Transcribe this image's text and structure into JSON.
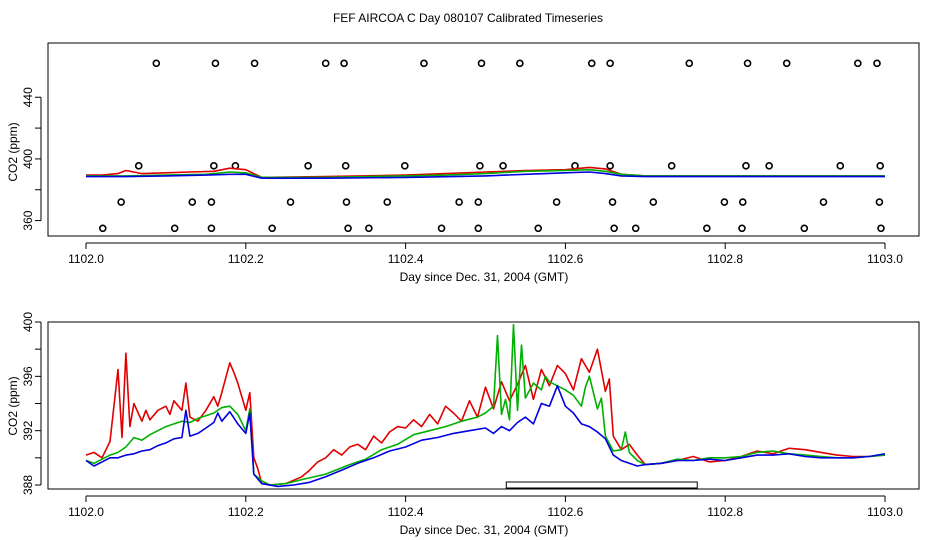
{
  "page_title": "FEF AIRCOA C  Day 080107  Calibrated Timeseries",
  "chart_data": [
    {
      "type": "scatter+line",
      "xlabel": "Day since Dec. 31, 2004 (GMT)",
      "ylabel": "CO2 (ppm)",
      "xlim": [
        1102.0,
        1103.0
      ],
      "ylim": [
        350,
        470
      ],
      "x_ticks": [
        "1102.0",
        "1102.2",
        "1102.4",
        "1102.6",
        "1102.8",
        "1103.0"
      ],
      "y_ticks": [
        "360",
        "400",
        "440"
      ],
      "markers": {
        "style": "open-circle",
        "points": [
          [
            1102.088,
            462
          ],
          [
            1102.162,
            462
          ],
          [
            1102.211,
            462
          ],
          [
            1102.3,
            462
          ],
          [
            1102.323,
            462
          ],
          [
            1102.423,
            462
          ],
          [
            1102.495,
            462
          ],
          [
            1102.543,
            462
          ],
          [
            1102.633,
            462
          ],
          [
            1102.656,
            462
          ],
          [
            1102.755,
            462
          ],
          [
            1102.828,
            462
          ],
          [
            1102.877,
            462
          ],
          [
            1102.966,
            462
          ],
          [
            1102.99,
            462
          ],
          [
            1102.066,
            395.5
          ],
          [
            1102.16,
            395.5
          ],
          [
            1102.187,
            395.5
          ],
          [
            1102.278,
            395.5
          ],
          [
            1102.325,
            395.5
          ],
          [
            1102.399,
            395.5
          ],
          [
            1102.493,
            395.5
          ],
          [
            1102.522,
            395.5
          ],
          [
            1102.612,
            395.5
          ],
          [
            1102.656,
            395.5
          ],
          [
            1102.733,
            395.5
          ],
          [
            1102.826,
            395.5
          ],
          [
            1102.855,
            395.5
          ],
          [
            1102.944,
            395.5
          ],
          [
            1102.994,
            395.5
          ],
          [
            1102.044,
            372
          ],
          [
            1102.133,
            372
          ],
          [
            1102.157,
            372
          ],
          [
            1102.256,
            372
          ],
          [
            1102.326,
            372
          ],
          [
            1102.377,
            372
          ],
          [
            1102.467,
            372
          ],
          [
            1102.491,
            372
          ],
          [
            1102.589,
            372
          ],
          [
            1102.659,
            372
          ],
          [
            1102.71,
            372
          ],
          [
            1102.799,
            372
          ],
          [
            1102.822,
            372
          ],
          [
            1102.923,
            372
          ],
          [
            1102.993,
            372
          ],
          [
            1102.021,
            355
          ],
          [
            1102.111,
            355
          ],
          [
            1102.157,
            355
          ],
          [
            1102.233,
            355
          ],
          [
            1102.328,
            355
          ],
          [
            1102.354,
            355
          ],
          [
            1102.445,
            355
          ],
          [
            1102.491,
            355
          ],
          [
            1102.566,
            355
          ],
          [
            1102.661,
            355
          ],
          [
            1102.688,
            355
          ],
          [
            1102.777,
            355
          ],
          [
            1102.821,
            355
          ],
          [
            1102.899,
            355
          ],
          [
            1102.995,
            355
          ]
        ]
      },
      "series": [
        {
          "name": "red",
          "color": "#e00000",
          "x": [
            1102.0,
            1102.02,
            1102.04,
            1102.05,
            1102.07,
            1102.1,
            1102.13,
            1102.16,
            1102.18,
            1102.2,
            1102.21,
            1102.22,
            1102.3,
            1102.4,
            1102.45,
            1102.5,
            1102.55,
            1102.6,
            1102.63,
            1102.65,
            1102.67,
            1102.7,
            1102.8,
            1102.9,
            1103.0
          ],
          "y": [
            389.5,
            389.5,
            390.5,
            392.5,
            390.5,
            391,
            391.5,
            392,
            394,
            393,
            390.5,
            388,
            388.5,
            389.5,
            390.5,
            391.5,
            392.5,
            393,
            394.5,
            393.5,
            390,
            389,
            389,
            389,
            389
          ]
        },
        {
          "name": "green",
          "color": "#00b000",
          "x": [
            1102.0,
            1102.05,
            1102.1,
            1102.15,
            1102.18,
            1102.2,
            1102.22,
            1102.3,
            1102.4,
            1102.45,
            1102.5,
            1102.55,
            1102.6,
            1102.63,
            1102.65,
            1102.67,
            1102.7,
            1102.8,
            1102.9,
            1103.0
          ],
          "y": [
            389,
            389,
            389.5,
            390,
            391.5,
            391,
            388,
            388,
            389,
            389.5,
            390.5,
            392,
            392.5,
            393,
            392,
            390,
            389,
            389,
            389,
            389
          ]
        },
        {
          "name": "blue",
          "color": "#0000e0",
          "x": [
            1102.0,
            1102.05,
            1102.1,
            1102.15,
            1102.18,
            1102.2,
            1102.22,
            1102.3,
            1102.4,
            1102.5,
            1102.55,
            1102.6,
            1102.63,
            1102.65,
            1102.67,
            1102.7,
            1102.8,
            1102.9,
            1103.0
          ],
          "y": [
            388.5,
            388.5,
            389,
            389.5,
            390,
            390,
            387.5,
            387.5,
            388,
            389,
            390,
            391,
            391.5,
            390.5,
            389,
            388.5,
            388.5,
            388.5,
            388.5
          ]
        }
      ]
    },
    {
      "type": "line",
      "xlabel": "Day since Dec. 31, 2004 (GMT)",
      "ylabel": "CO2 (ppm)",
      "xlim": [
        1102.0,
        1103.0
      ],
      "ylim": [
        388,
        400
      ],
      "x_ticks": [
        "1102.0",
        "1102.2",
        "1102.4",
        "1102.6",
        "1102.8",
        "1103.0"
      ],
      "y_ticks": [
        "388",
        "392",
        "396",
        "400"
      ],
      "range_bar": {
        "x": [
          1102.526,
          1102.765
        ]
      },
      "series": [
        {
          "name": "red",
          "color": "#e00000",
          "x": [
            1102.0,
            1102.01,
            1102.02,
            1102.03,
            1102.04,
            1102.045,
            1102.05,
            1102.055,
            1102.06,
            1102.07,
            1102.075,
            1102.08,
            1102.09,
            1102.1,
            1102.105,
            1102.11,
            1102.12,
            1102.125,
            1102.13,
            1102.14,
            1102.15,
            1102.16,
            1102.165,
            1102.17,
            1102.18,
            1102.185,
            1102.19,
            1102.2,
            1102.205,
            1102.21,
            1102.215,
            1102.22,
            1102.23,
            1102.25,
            1102.27,
            1102.28,
            1102.29,
            1102.3,
            1102.31,
            1102.32,
            1102.33,
            1102.34,
            1102.35,
            1102.36,
            1102.37,
            1102.38,
            1102.39,
            1102.4,
            1102.41,
            1102.42,
            1102.43,
            1102.44,
            1102.45,
            1102.46,
            1102.47,
            1102.48,
            1102.49,
            1102.5,
            1102.51,
            1102.52,
            1102.53,
            1102.54,
            1102.55,
            1102.56,
            1102.57,
            1102.58,
            1102.59,
            1102.6,
            1102.61,
            1102.62,
            1102.63,
            1102.64,
            1102.65,
            1102.655,
            1102.66,
            1102.67,
            1102.68,
            1102.69,
            1102.7,
            1102.72,
            1102.74,
            1102.76,
            1102.78,
            1102.8,
            1102.82,
            1102.84,
            1102.86,
            1102.88,
            1102.9,
            1102.92,
            1102.94,
            1102.96,
            1102.98,
            1103.0
          ],
          "y": [
            390.2,
            390.4,
            390.0,
            391.2,
            396.5,
            391.5,
            397.7,
            392.3,
            394.0,
            392.7,
            393.5,
            392.8,
            393.5,
            393.8,
            393.2,
            394.2,
            393.5,
            395.5,
            393.0,
            392.7,
            393.5,
            394.5,
            393.8,
            394.8,
            397.0,
            396.3,
            395.5,
            393.5,
            394.8,
            390.0,
            389.2,
            388.1,
            388.0,
            388.1,
            388.6,
            389.1,
            389.7,
            390.0,
            390.6,
            390.2,
            390.8,
            391.0,
            390.6,
            391.6,
            391.1,
            391.9,
            392.3,
            392.2,
            392.8,
            392.3,
            393.2,
            392.5,
            393.8,
            393.3,
            392.7,
            394.2,
            393.0,
            395.2,
            393.6,
            395.6,
            394.2,
            395.4,
            396.8,
            394.3,
            396.5,
            395.3,
            396.8,
            396.2,
            395.0,
            397.3,
            396.3,
            398.0,
            394.9,
            395.8,
            391.6,
            390.6,
            391.0,
            390.2,
            389.5,
            389.6,
            389.8,
            390.1,
            389.7,
            389.8,
            390.1,
            390.5,
            390.3,
            390.7,
            390.6,
            390.4,
            390.2,
            390.1,
            390.1,
            390.2
          ]
        },
        {
          "name": "green",
          "color": "#00b000",
          "x": [
            1102.0,
            1102.01,
            1102.02,
            1102.03,
            1102.04,
            1102.05,
            1102.06,
            1102.07,
            1102.08,
            1102.09,
            1102.1,
            1102.11,
            1102.12,
            1102.13,
            1102.14,
            1102.15,
            1102.16,
            1102.17,
            1102.18,
            1102.19,
            1102.2,
            1102.205,
            1102.21,
            1102.22,
            1102.23,
            1102.25,
            1102.27,
            1102.3,
            1102.33,
            1102.35,
            1102.37,
            1102.39,
            1102.41,
            1102.43,
            1102.45,
            1102.47,
            1102.49,
            1102.5,
            1102.51,
            1102.515,
            1102.52,
            1102.525,
            1102.53,
            1102.535,
            1102.54,
            1102.545,
            1102.55,
            1102.56,
            1102.57,
            1102.575,
            1102.58,
            1102.59,
            1102.6,
            1102.61,
            1102.62,
            1102.625,
            1102.63,
            1102.64,
            1102.645,
            1102.65,
            1102.66,
            1102.67,
            1102.675,
            1102.68,
            1102.69,
            1102.7,
            1102.72,
            1102.74,
            1102.76,
            1102.78,
            1102.8,
            1102.82,
            1102.84,
            1102.86,
            1102.88,
            1102.9,
            1102.92,
            1102.94,
            1102.96,
            1102.98,
            1103.0
          ],
          "y": [
            389.8,
            389.6,
            389.9,
            390.2,
            390.4,
            390.8,
            391.5,
            391.3,
            391.7,
            392.0,
            392.3,
            392.5,
            392.7,
            392.6,
            392.9,
            393.1,
            393.3,
            393.7,
            393.8,
            393.2,
            392.0,
            393.6,
            388.8,
            388.3,
            388.0,
            388.1,
            388.4,
            388.8,
            389.5,
            389.9,
            390.6,
            391.0,
            391.7,
            392.0,
            392.3,
            392.7,
            393.0,
            393.3,
            393.8,
            399.0,
            393.2,
            394.3,
            392.8,
            399.8,
            393.5,
            398.3,
            394.4,
            395.5,
            395.0,
            396.0,
            395.6,
            395.3,
            395.0,
            394.6,
            393.8,
            395.2,
            396.0,
            393.6,
            394.4,
            391.6,
            390.5,
            390.6,
            391.9,
            390.4,
            389.8,
            389.5,
            389.6,
            389.9,
            389.8,
            390.0,
            390.0,
            390.1,
            390.4,
            390.5,
            390.3,
            390.2,
            390.1,
            390.0,
            390.0,
            390.1,
            390.2
          ]
        },
        {
          "name": "blue",
          "color": "#0000e0",
          "x": [
            1102.0,
            1102.01,
            1102.02,
            1102.03,
            1102.04,
            1102.05,
            1102.06,
            1102.07,
            1102.08,
            1102.09,
            1102.1,
            1102.11,
            1102.12,
            1102.125,
            1102.13,
            1102.14,
            1102.15,
            1102.16,
            1102.165,
            1102.17,
            1102.18,
            1102.19,
            1102.2,
            1102.205,
            1102.21,
            1102.22,
            1102.24,
            1102.26,
            1102.28,
            1102.3,
            1102.32,
            1102.34,
            1102.36,
            1102.38,
            1102.4,
            1102.42,
            1102.44,
            1102.46,
            1102.48,
            1102.5,
            1102.51,
            1102.52,
            1102.53,
            1102.54,
            1102.55,
            1102.56,
            1102.57,
            1102.58,
            1102.59,
            1102.6,
            1102.61,
            1102.62,
            1102.63,
            1102.64,
            1102.65,
            1102.66,
            1102.67,
            1102.68,
            1102.69,
            1102.7,
            1102.72,
            1102.74,
            1102.76,
            1102.78,
            1102.8,
            1102.82,
            1102.84,
            1102.86,
            1102.88,
            1102.9,
            1102.92,
            1102.94,
            1102.96,
            1102.98,
            1103.0
          ],
          "y": [
            389.8,
            389.4,
            389.7,
            390.0,
            390.0,
            390.2,
            390.3,
            390.5,
            390.6,
            390.9,
            391.1,
            391.4,
            391.5,
            393.5,
            391.6,
            391.8,
            392.2,
            392.6,
            393.3,
            392.7,
            393.4,
            392.5,
            391.8,
            393.3,
            388.8,
            388.1,
            387.9,
            388.0,
            388.2,
            388.6,
            389.1,
            389.6,
            390.0,
            390.5,
            390.8,
            391.3,
            391.5,
            391.8,
            392.0,
            392.2,
            391.8,
            392.3,
            392.0,
            392.6,
            393.0,
            392.5,
            394.0,
            393.8,
            395.3,
            393.8,
            393.3,
            392.5,
            392.3,
            391.9,
            391.4,
            390.2,
            389.8,
            389.6,
            389.4,
            389.5,
            389.6,
            389.8,
            389.8,
            389.9,
            389.8,
            390.0,
            390.2,
            390.2,
            390.3,
            390.1,
            390.0,
            390.0,
            390.0,
            390.1,
            390.3
          ]
        }
      ]
    }
  ]
}
